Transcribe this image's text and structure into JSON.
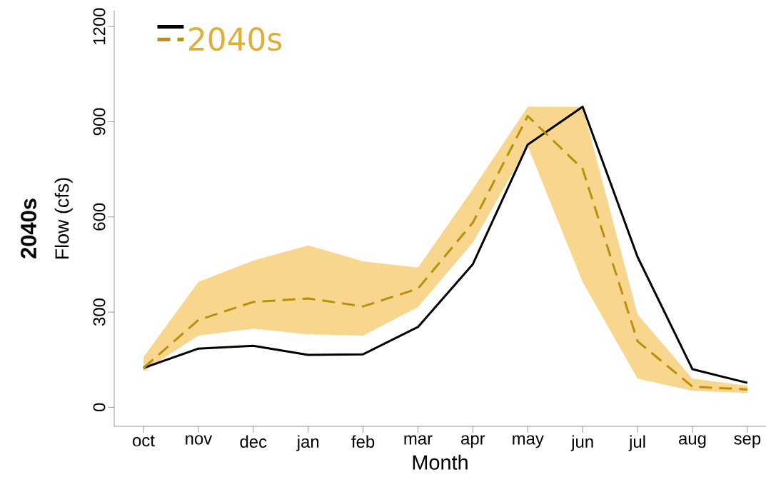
{
  "chart_data": {
    "type": "line",
    "xlabel": "Month",
    "ylabel": "Flow (cfs)",
    "annotations": [
      "2040s"
    ],
    "categories": [
      "oct",
      "nov",
      "dec",
      "jan",
      "feb",
      "mar",
      "apr",
      "may",
      "jun",
      "jul",
      "aug",
      "sep"
    ],
    "series": [
      {
        "color": "#000000",
        "line_style": "solid",
        "values": [
          124,
          185,
          194,
          165,
          167,
          253,
          451,
          828,
          947,
          474,
          120,
          77
        ]
      },
      {
        "name": "2040s",
        "color": "#b8900a",
        "line_style": "dashed",
        "values": [
          124,
          275,
          332,
          343,
          318,
          374,
          582,
          918,
          751,
          208,
          65,
          56
        ],
        "lower": [
          113,
          226,
          248,
          230,
          226,
          316,
          519,
          823,
          395,
          90,
          52,
          45
        ],
        "upper": [
          158,
          395,
          462,
          510,
          460,
          440,
          688,
          947,
          947,
          293,
          90,
          68
        ]
      }
    ],
    "ylim": [
      -60,
      1250
    ],
    "yticks": [
      0,
      300,
      600,
      900,
      1200
    ],
    "grid": false,
    "legend": "top left",
    "marker": "none"
  }
}
